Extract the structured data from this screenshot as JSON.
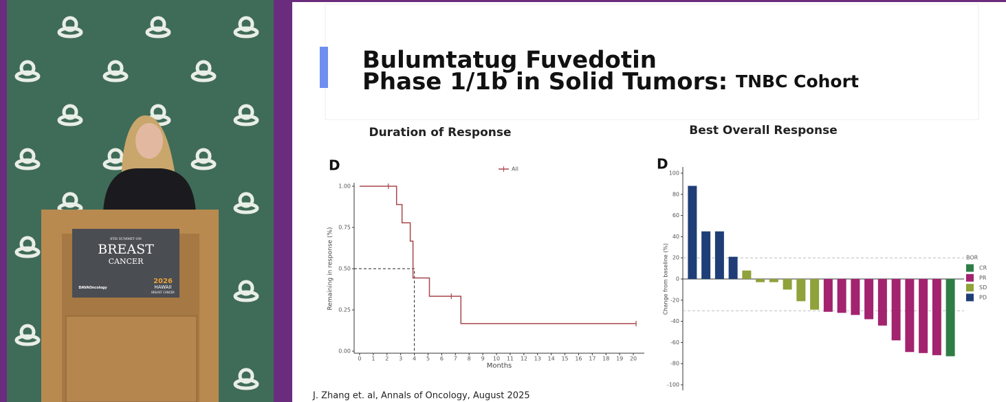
{
  "video": {
    "sign": {
      "edition": "8TH SUMMIT ON",
      "line1": "BREAST",
      "line2": "CANCER",
      "sponsor": "DAVAOncology",
      "year": "2026",
      "event_line1": "HAWAII",
      "event_line2": "BREAST CANCER"
    }
  },
  "slide": {
    "title_line1": "Bulumtatug Fuvedotin",
    "title_line2": "Phase 1/1b in Solid Tumors:",
    "title_suffix": "TNBC Cohort",
    "citation": "J. Zhang et. al, Annals of Oncology, August 2025"
  },
  "chart_data": [
    {
      "type": "step",
      "title": "Duration of Response",
      "panel_label": "D",
      "x_label": "Months",
      "y_label": "Remaining in response (%)",
      "xlim": [
        -0.4,
        20.8
      ],
      "xticks": [
        0,
        1,
        2,
        3,
        4,
        5,
        6,
        7,
        8,
        9,
        10,
        11,
        12,
        13,
        14,
        15,
        16,
        17,
        18,
        19,
        20
      ],
      "ylim": [
        0,
        1
      ],
      "yticks": [
        {
          "value": 0,
          "label": "0.00"
        },
        {
          "value": 0.25,
          "label": "0.25"
        },
        {
          "value": 0.5,
          "label": "0.50"
        },
        {
          "value": 0.75,
          "label": "0.75"
        },
        {
          "value": 1,
          "label": "1.00"
        }
      ],
      "series": [
        {
          "name": "All",
          "color": "#a8464b",
          "x": [
            0,
            2.7,
            3.1,
            3.7,
            3.9,
            5.1,
            7.4,
            20.2
          ],
          "values": [
            1,
            0.889,
            0.778,
            0.667,
            0.444,
            0.333,
            0.167,
            0.167
          ]
        }
      ],
      "censored": {
        "x": [
          2.1,
          6.7,
          20.2
        ],
        "values": [
          1,
          0.333,
          0.167
        ]
      },
      "median": {
        "x": 4.0,
        "value": 0.5
      }
    },
    {
      "type": "waterfall",
      "title": "Best Overall Response",
      "panel_label": "D",
      "y_label": "Change from baseline (%)",
      "ylim": [
        -100,
        100
      ],
      "yticks": [
        -100,
        -80,
        -60,
        -40,
        -20,
        0,
        20,
        40,
        60,
        80,
        100
      ],
      "reference_lines": [
        20,
        -30
      ],
      "values": [
        88,
        45,
        45,
        21,
        8,
        -3,
        -3,
        -10,
        -21,
        -29,
        -31,
        -32,
        -34,
        -38,
        -44,
        -58,
        -69,
        -70,
        -72,
        -73
      ],
      "groups": [
        "PD",
        "PD",
        "PD",
        "PD",
        "SD",
        "SD",
        "SD",
        "SD",
        "SD",
        "SD",
        "PR",
        "PR",
        "PR",
        "PR",
        "PR",
        "PR",
        "PR",
        "PR",
        "PR",
        "CR"
      ],
      "legend": {
        "title": "BOR",
        "entries": [
          {
            "name": "CR",
            "color": "#2f7d46"
          },
          {
            "name": "PR",
            "color": "#a3236f"
          },
          {
            "name": "SD",
            "color": "#8fa23b"
          },
          {
            "name": "PD",
            "color": "#1f3e78"
          }
        ]
      }
    }
  ]
}
